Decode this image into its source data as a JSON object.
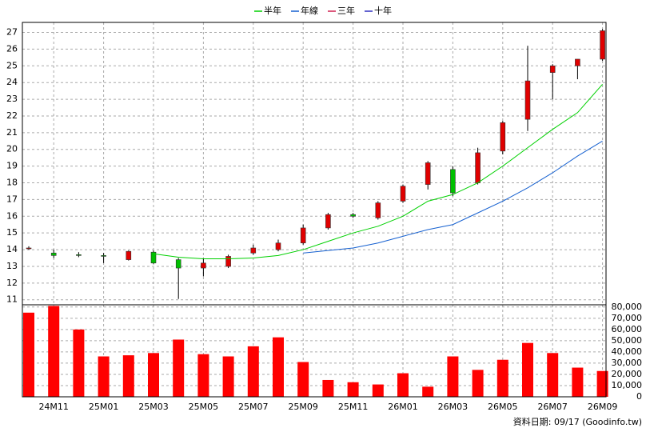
{
  "chart_data": [
    {
      "type": "candlestick",
      "up_color": "#e00000",
      "down_color": "#00c000",
      "open": [
        14.05,
        13.8,
        13.7,
        13.65,
        13.4,
        13.85,
        13.4,
        12.9,
        13.0,
        13.8,
        14.0,
        14.4,
        15.3,
        16.1,
        15.9,
        16.9,
        17.9,
        18.8,
        18.0,
        19.9,
        21.8,
        24.6,
        25.0,
        25.4
      ],
      "high": [
        14.2,
        14.0,
        13.85,
        13.8,
        13.95,
        13.95,
        13.5,
        13.5,
        13.7,
        14.3,
        14.6,
        15.5,
        16.2,
        16.2,
        16.9,
        17.9,
        19.3,
        19.0,
        20.1,
        21.7,
        26.2,
        25.1,
        25.4,
        27.2
      ],
      "low": [
        14.0,
        13.5,
        13.55,
        13.2,
        13.35,
        13.15,
        11.05,
        12.4,
        12.9,
        13.7,
        13.9,
        14.3,
        15.2,
        15.9,
        15.8,
        16.8,
        17.6,
        17.2,
        17.9,
        19.7,
        21.1,
        23.0,
        24.2,
        25.3
      ],
      "close": [
        14.1,
        13.65,
        13.65,
        13.6,
        13.9,
        13.2,
        12.9,
        13.2,
        13.6,
        14.1,
        14.4,
        15.3,
        16.1,
        16.0,
        16.8,
        17.8,
        19.2,
        17.4,
        19.8,
        21.6,
        24.1,
        25.0,
        25.4,
        27.1
      ],
      "series": [
        {
          "name": "半年",
          "color": "#00d000",
          "values": [
            null,
            null,
            null,
            null,
            null,
            13.75,
            13.55,
            13.45,
            13.45,
            13.5,
            13.65,
            14.0,
            14.5,
            15.0,
            15.4,
            16.0,
            16.9,
            17.3,
            18.0,
            19.0,
            20.1,
            21.2,
            22.2,
            23.9
          ]
        },
        {
          "name": "年線",
          "color": "#1560d0",
          "values": [
            null,
            null,
            null,
            null,
            null,
            null,
            null,
            null,
            null,
            null,
            null,
            13.8,
            13.95,
            14.1,
            14.4,
            14.8,
            15.2,
            15.5,
            16.2,
            16.9,
            17.7,
            18.6,
            19.6,
            20.5
          ]
        },
        {
          "name": "三年",
          "color": "#d02050",
          "values": [
            null,
            null,
            null,
            null,
            null,
            null,
            null,
            null,
            null,
            null,
            null,
            null,
            null,
            null,
            null,
            null,
            null,
            null,
            null,
            null,
            null,
            null,
            null,
            null
          ]
        },
        {
          "name": "十年",
          "color": "#3030c0",
          "values": [
            null,
            null,
            null,
            null,
            null,
            null,
            null,
            null,
            null,
            null,
            null,
            null,
            null,
            null,
            null,
            null,
            null,
            null,
            null,
            null,
            null,
            null,
            null,
            null
          ]
        }
      ],
      "ylim": [
        10.7,
        27.6
      ],
      "yticks": [
        11,
        12,
        13,
        14,
        15,
        16,
        17,
        18,
        19,
        20,
        21,
        22,
        23,
        24,
        25,
        26,
        27
      ],
      "grid": true,
      "legend": "top"
    },
    {
      "type": "bar",
      "color": "#ff0000",
      "categories": [
        null,
        "24M11",
        null,
        "25M01",
        null,
        "25M03",
        null,
        "25M05",
        null,
        "25M07",
        null,
        "25M09",
        null,
        "25M11",
        null,
        "26M01",
        null,
        "26M03",
        null,
        "26M05",
        null,
        "26M07",
        null,
        "26M09"
      ],
      "values": [
        75000,
        81000,
        60000,
        36000,
        37000,
        39000,
        51000,
        38000,
        36000,
        45000,
        53000,
        31000,
        15000,
        13000,
        11000,
        21000,
        9000,
        36000,
        24000,
        33000,
        48000,
        39000,
        26000,
        23000
      ],
      "ylim": [
        0,
        82000
      ],
      "yticks": [
        0,
        {
          "value": 10000,
          "label": "10,000"
        },
        {
          "value": 20000,
          "label": "20,000"
        },
        {
          "value": 30000,
          "label": "30,000"
        },
        {
          "value": 40000,
          "label": "40,000"
        },
        {
          "value": 50000,
          "label": "50,000"
        },
        {
          "value": 60000,
          "label": "60,000"
        },
        {
          "value": 70000,
          "label": "70,000"
        },
        {
          "value": 80000,
          "label": "80,000"
        }
      ],
      "grid": true
    }
  ],
  "footer": "資料日期: 09/17 (Goodinfo.tw)"
}
